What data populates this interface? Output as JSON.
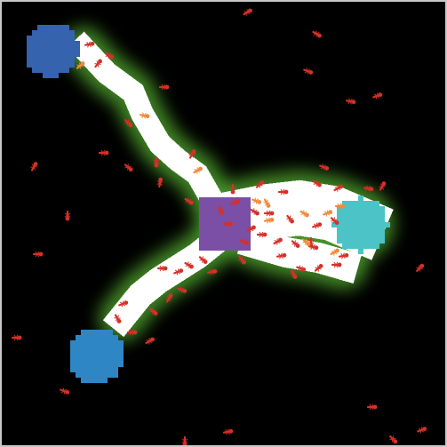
{
  "scene": {
    "type": "ant-foraging-simulation",
    "background_color": "#000000",
    "frame_color": "#c8c8c8"
  },
  "colors": {
    "pheromone_core": "#ffffff",
    "pheromone_glow": "#4a9a2a",
    "ant_searching": "#d63027",
    "ant_carrying": "#f28a3a",
    "nest": "#7a4fa5",
    "food_dark_blue": "#3563ad",
    "food_mid_blue": "#2f86c4",
    "food_cyan": "#4cc3c6"
  },
  "entities": {
    "nest": {
      "label": "nest",
      "count": 1,
      "color_key": "nest"
    },
    "food_sources": [
      {
        "name": "food-source-top-left",
        "color_key": "food_dark_blue",
        "remaining": 1.0
      },
      {
        "name": "food-source-bottom-left",
        "color_key": "food_mid_blue",
        "remaining": 1.0
      },
      {
        "name": "food-source-right",
        "color_key": "food_cyan",
        "remaining": 1.0
      }
    ],
    "ants": {
      "searching_shown": "many",
      "carrying_shown": "some"
    }
  }
}
